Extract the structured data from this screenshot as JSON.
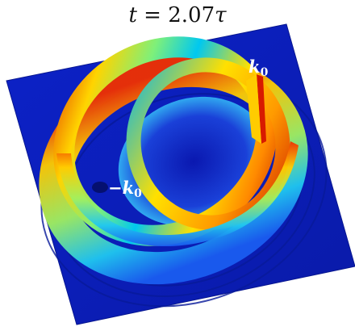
{
  "title": {
    "t_symbol": "t",
    "equals": " = ",
    "value": "2.07",
    "unit_symbol": "τ"
  },
  "labels": {
    "k0": {
      "symbol": "k",
      "subscript": "0"
    },
    "neg_k0": {
      "sign": "−",
      "symbol": "k",
      "subscript": "0"
    }
  },
  "colors": {
    "background_plane": "#0b1fb8",
    "plane_edge": "#081790",
    "ring_low": "#1a5cf0",
    "ring_mid": "#00d0f0",
    "ring_high": "#ffd400",
    "ring_peak": "#e01a00",
    "label_text": "#ffffff"
  }
}
